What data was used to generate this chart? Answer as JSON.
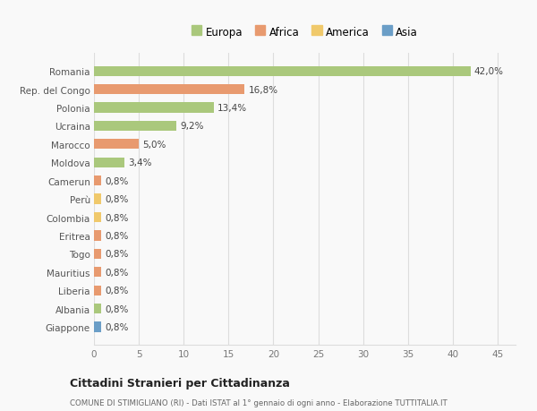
{
  "categories": [
    "Giappone",
    "Albania",
    "Liberia",
    "Mauritius",
    "Togo",
    "Eritrea",
    "Colombia",
    "Perù",
    "Camerun",
    "Moldova",
    "Marocco",
    "Ucraina",
    "Polonia",
    "Rep. del Congo",
    "Romania"
  ],
  "values": [
    0.8,
    0.8,
    0.8,
    0.8,
    0.8,
    0.8,
    0.8,
    0.8,
    0.8,
    3.4,
    5.0,
    9.2,
    13.4,
    16.8,
    42.0
  ],
  "labels": [
    "0,8%",
    "0,8%",
    "0,8%",
    "0,8%",
    "0,8%",
    "0,8%",
    "0,8%",
    "0,8%",
    "0,8%",
    "3,4%",
    "5,0%",
    "9,2%",
    "13,4%",
    "16,8%",
    "42,0%"
  ],
  "colors": [
    "#6b9ec7",
    "#aac87c",
    "#e89a6f",
    "#e89a6f",
    "#e89a6f",
    "#e89a6f",
    "#f0c96b",
    "#f0c96b",
    "#e89a6f",
    "#aac87c",
    "#e89a6f",
    "#aac87c",
    "#aac87c",
    "#e89a6f",
    "#aac87c"
  ],
  "legend_labels": [
    "Europa",
    "Africa",
    "America",
    "Asia"
  ],
  "legend_colors": [
    "#aac87c",
    "#e89a6f",
    "#f0c96b",
    "#6b9ec7"
  ],
  "title1": "Cittadini Stranieri per Cittadinanza",
  "title2": "COMUNE DI STIMIGLIANO (RI) - Dati ISTAT al 1° gennaio di ogni anno - Elaborazione TUTTITALIA.IT",
  "xlim": [
    0,
    47
  ],
  "xticks": [
    0,
    5,
    10,
    15,
    20,
    25,
    30,
    35,
    40,
    45
  ],
  "background_color": "#f9f9f9",
  "bar_height": 0.55,
  "grid_color": "#dddddd"
}
